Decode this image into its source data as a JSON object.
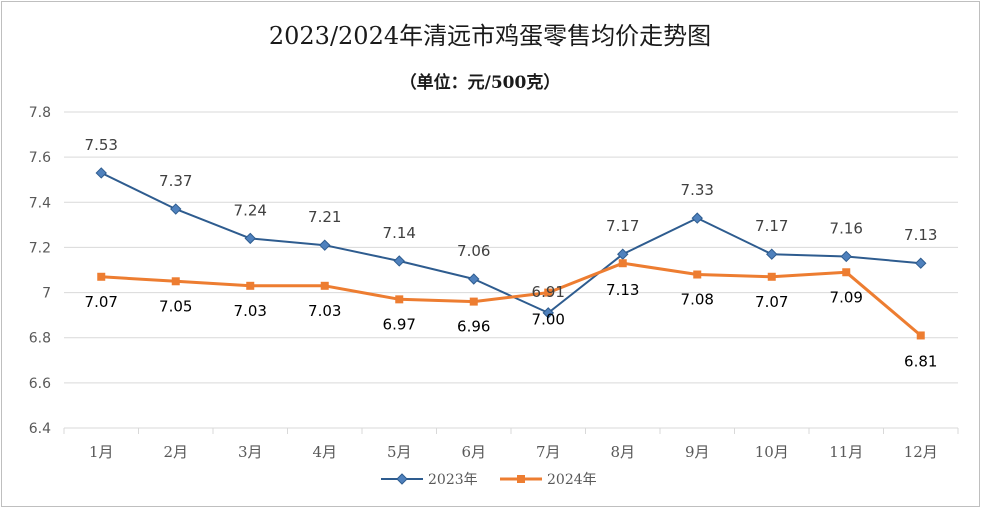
{
  "chart_data": {
    "type": "line",
    "title": "2023/2024年清远市鸡蛋零售均价走势图",
    "subtitle": "（单位：元/500克）",
    "categories": [
      "1月",
      "2月",
      "3月",
      "4月",
      "5月",
      "6月",
      "7月",
      "8月",
      "9月",
      "10月",
      "11月",
      "12月"
    ],
    "series": [
      {
        "name": "2023年",
        "color": "#2e5c8f",
        "marker": "diamond",
        "values": [
          7.53,
          7.37,
          7.24,
          7.21,
          7.14,
          7.06,
          6.91,
          7.17,
          7.33,
          7.17,
          7.16,
          7.13
        ],
        "labels": [
          "7.53",
          "7.37",
          "7.24",
          "7.21",
          "7.14",
          "7.06",
          "6.91",
          "7.17",
          "7.33",
          "7.17",
          "7.16",
          "7.13"
        ]
      },
      {
        "name": "2024年",
        "color": "#ed7d31",
        "marker": "square",
        "values": [
          7.07,
          7.05,
          7.03,
          7.03,
          6.97,
          6.96,
          7.0,
          7.13,
          7.08,
          7.07,
          7.09,
          6.81
        ],
        "labels": [
          "7.07",
          "7.05",
          "7.03",
          "7.03",
          "6.97",
          "6.96",
          "7.00",
          "7.13",
          "7.08",
          "7.07",
          "7.09",
          "6.81"
        ]
      }
    ],
    "ylim": [
      6.4,
      7.8
    ],
    "yticks": [
      "6.4",
      "6.6",
      "6.8",
      "7",
      "7.2",
      "7.4",
      "7.6",
      "7.8"
    ],
    "grid": true,
    "legend": "bottom-center"
  }
}
